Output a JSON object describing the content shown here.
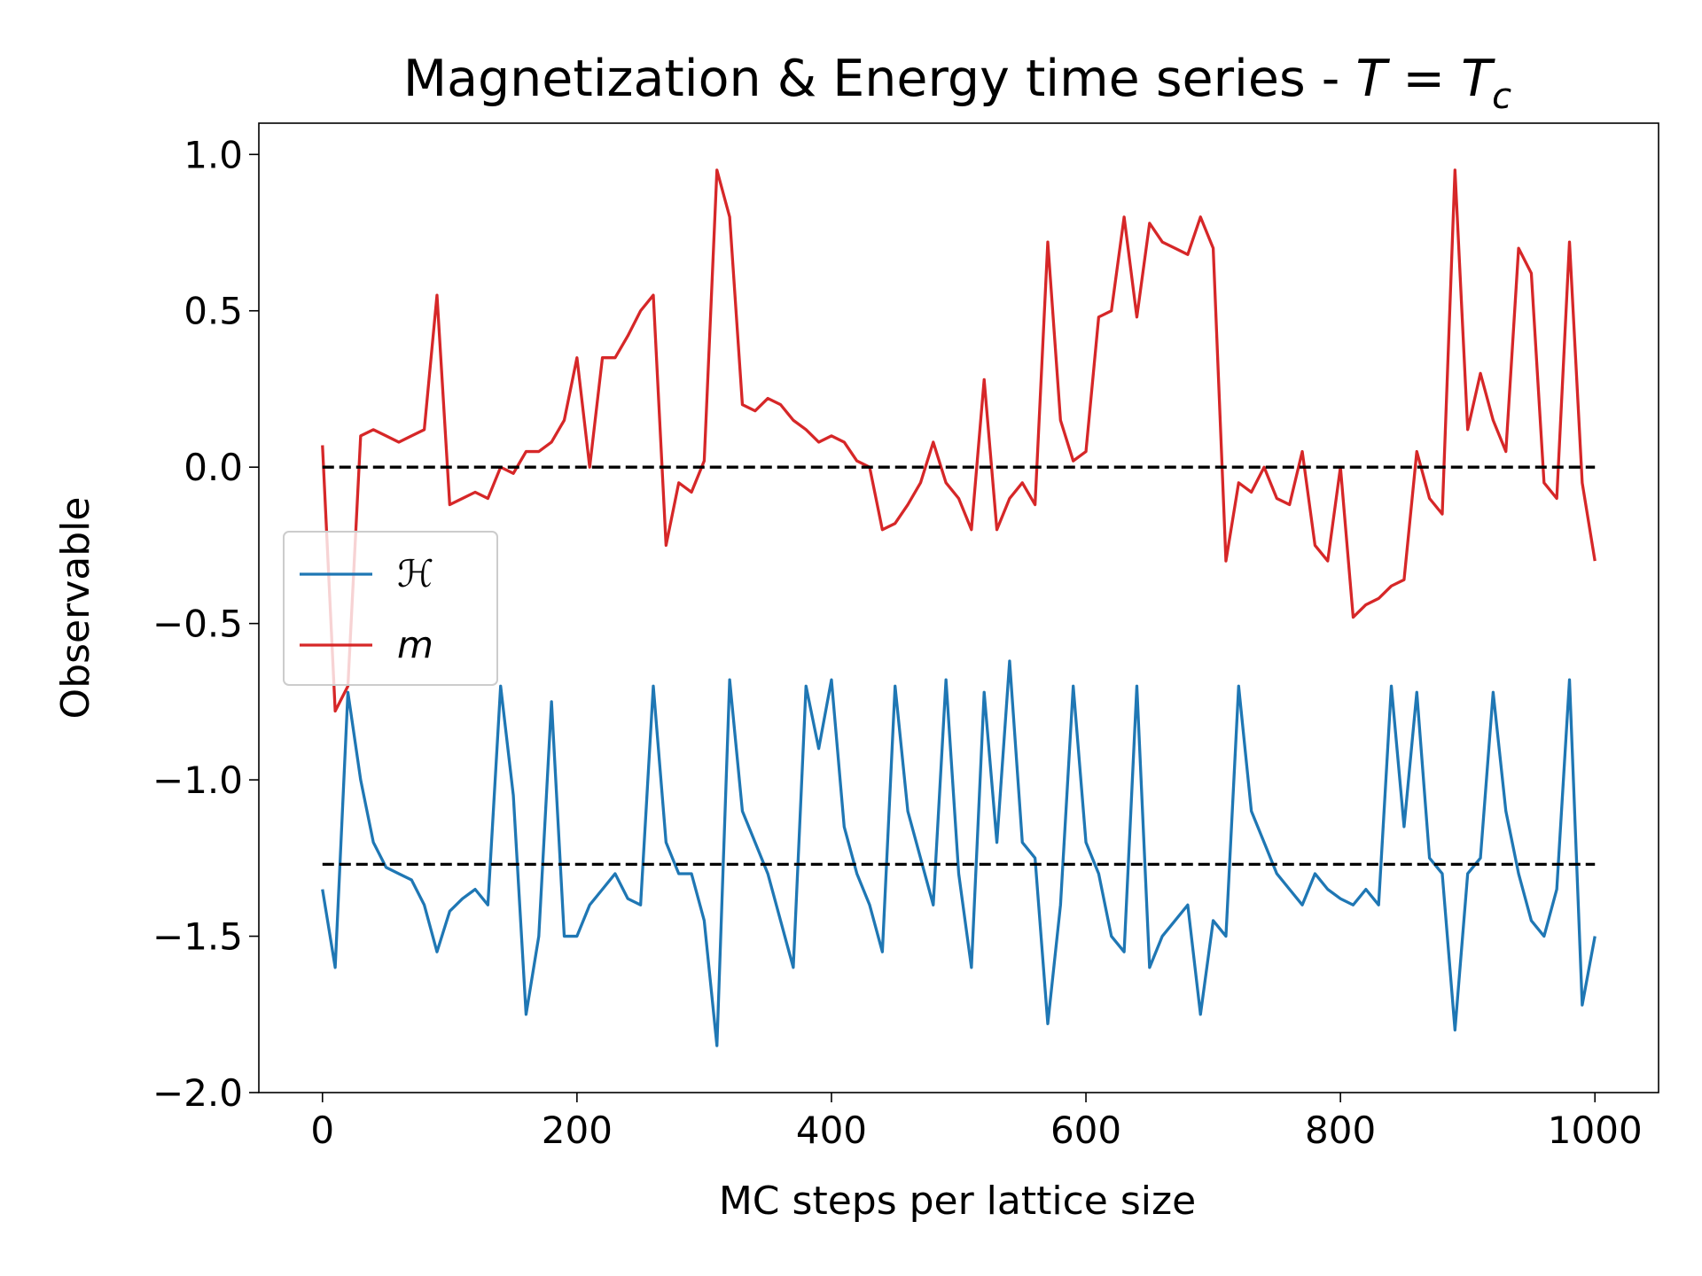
{
  "chart_data": {
    "type": "line",
    "title": {
      "text": "Magnetization & Energy time series - ",
      "math": "T = T",
      "subscript": "c"
    },
    "xlabel": "MC steps per lattice size",
    "ylabel": "Observable",
    "xlim": [
      -50,
      1050
    ],
    "ylim": [
      -2,
      1.1
    ],
    "xticks": [
      0,
      200,
      400,
      600,
      800,
      1000
    ],
    "yticks": [
      {
        "value": -2,
        "label": "−2.0"
      },
      {
        "value": -1.5,
        "label": "−1.5"
      },
      {
        "value": -1,
        "label": "−1.0"
      },
      {
        "value": -0.5,
        "label": "−0.5"
      },
      {
        "value": 0,
        "label": "0.0"
      },
      {
        "value": 0.5,
        "label": "0.5"
      },
      {
        "value": 1,
        "label": "1.0"
      }
    ],
    "legend": "center left",
    "reference_lines": [
      0,
      -1.27
    ],
    "reference_line_color": "#000000",
    "x": [
      0,
      10,
      20,
      30,
      40,
      50,
      60,
      70,
      80,
      90,
      100,
      110,
      120,
      130,
      140,
      150,
      160,
      170,
      180,
      190,
      200,
      210,
      220,
      230,
      240,
      250,
      260,
      270,
      280,
      290,
      300,
      310,
      320,
      330,
      340,
      350,
      360,
      370,
      380,
      390,
      400,
      410,
      420,
      430,
      440,
      450,
      460,
      470,
      480,
      490,
      500,
      510,
      520,
      530,
      540,
      550,
      560,
      570,
      580,
      590,
      600,
      610,
      620,
      630,
      640,
      650,
      660,
      670,
      680,
      690,
      700,
      710,
      720,
      730,
      740,
      750,
      760,
      770,
      780,
      790,
      800,
      810,
      820,
      830,
      840,
      850,
      860,
      870,
      880,
      890,
      900,
      910,
      920,
      930,
      940,
      950,
      960,
      970,
      980,
      990,
      1000
    ],
    "series": [
      {
        "name": "ℋ",
        "color": "#1f77b4",
        "values": [
          -1.35,
          -1.6,
          -0.72,
          -1.0,
          -1.2,
          -1.28,
          -1.3,
          -1.32,
          -1.4,
          -1.55,
          -1.42,
          -1.38,
          -1.35,
          -1.4,
          -0.7,
          -1.05,
          -1.75,
          -1.5,
          -0.75,
          -1.5,
          -1.5,
          -1.4,
          -1.35,
          -1.3,
          -1.38,
          -1.4,
          -0.7,
          -1.2,
          -1.3,
          -1.3,
          -1.45,
          -1.85,
          -0.68,
          -1.1,
          -1.2,
          -1.3,
          -1.45,
          -1.6,
          -0.7,
          -0.9,
          -0.68,
          -1.15,
          -1.3,
          -1.4,
          -1.55,
          -0.7,
          -1.1,
          -1.25,
          -1.4,
          -0.68,
          -1.3,
          -1.6,
          -0.72,
          -1.2,
          -0.62,
          -1.2,
          -1.25,
          -1.78,
          -1.4,
          -0.7,
          -1.2,
          -1.3,
          -1.5,
          -1.55,
          -0.7,
          -1.6,
          -1.5,
          -1.45,
          -1.4,
          -1.75,
          -1.45,
          -1.5,
          -0.7,
          -1.1,
          -1.2,
          -1.3,
          -1.35,
          -1.4,
          -1.3,
          -1.35,
          -1.38,
          -1.4,
          -1.35,
          -1.4,
          -0.7,
          -1.15,
          -0.72,
          -1.25,
          -1.3,
          -1.8,
          -1.3,
          -1.25,
          -0.72,
          -1.1,
          -1.3,
          -1.45,
          -1.5,
          -1.35,
          -0.68,
          -1.72,
          -1.5
        ]
      },
      {
        "name": "m",
        "color": "#d62728",
        "values": [
          0.07,
          -0.78,
          -0.7,
          0.1,
          0.12,
          0.1,
          0.08,
          0.1,
          0.12,
          0.55,
          -0.12,
          -0.1,
          -0.08,
          -0.1,
          0.0,
          -0.02,
          0.05,
          0.05,
          0.08,
          0.15,
          0.35,
          0.0,
          0.35,
          0.35,
          0.42,
          0.5,
          0.55,
          -0.25,
          -0.05,
          -0.08,
          0.02,
          0.95,
          0.8,
          0.2,
          0.18,
          0.22,
          0.2,
          0.15,
          0.12,
          0.08,
          0.1,
          0.08,
          0.02,
          0.0,
          -0.2,
          -0.18,
          -0.12,
          -0.05,
          0.08,
          -0.05,
          -0.1,
          -0.2,
          0.28,
          -0.2,
          -0.1,
          -0.05,
          -0.12,
          0.72,
          0.15,
          0.02,
          0.05,
          0.48,
          0.5,
          0.8,
          0.48,
          0.78,
          0.72,
          0.7,
          0.68,
          0.8,
          0.7,
          -0.3,
          -0.05,
          -0.08,
          0.0,
          -0.1,
          -0.12,
          0.05,
          -0.25,
          -0.3,
          0.0,
          -0.48,
          -0.44,
          -0.42,
          -0.38,
          -0.36,
          0.05,
          -0.1,
          -0.15,
          0.95,
          0.12,
          0.3,
          0.15,
          0.05,
          0.7,
          0.62,
          -0.05,
          -0.1,
          0.72,
          -0.05,
          -0.3
        ]
      }
    ]
  }
}
